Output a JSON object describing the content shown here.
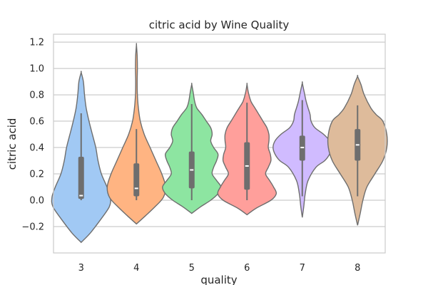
{
  "chart_data": {
    "type": "violin",
    "title": "citric acid by Wine Quality",
    "xlabel": "quality",
    "ylabel": "citric acid",
    "categories": [
      "3",
      "4",
      "5",
      "6",
      "7",
      "8"
    ],
    "ylim": [
      -0.4,
      1.26
    ],
    "yticks": [
      -0.2,
      0.0,
      0.2,
      0.4,
      0.6,
      0.8,
      1.0,
      1.2
    ],
    "ytick_labels": [
      "−0.2",
      "0.0",
      "0.2",
      "0.4",
      "0.6",
      "0.8",
      "1.0",
      "1.2"
    ],
    "grid": "horizontal",
    "colors": [
      "#a1c9f4",
      "#ffb482",
      "#8de5a1",
      "#ff9f9b",
      "#d0bbff",
      "#debb9b"
    ],
    "edge_color": "#6e6e6e",
    "series": [
      {
        "category": "3",
        "min": 0.0,
        "q1": 0.01,
        "median": 0.035,
        "q3": 0.33,
        "max": 0.66,
        "profile": [
          [
            -0.32,
            0.0
          ],
          [
            -0.25,
            0.16
          ],
          [
            -0.15,
            0.34
          ],
          [
            -0.05,
            0.5
          ],
          [
            0.02,
            0.52
          ],
          [
            0.1,
            0.46
          ],
          [
            0.2,
            0.36
          ],
          [
            0.3,
            0.3
          ],
          [
            0.4,
            0.26
          ],
          [
            0.5,
            0.2
          ],
          [
            0.6,
            0.14
          ],
          [
            0.7,
            0.09
          ],
          [
            0.8,
            0.06
          ],
          [
            0.9,
            0.04
          ],
          [
            0.97,
            0.0
          ]
        ]
      },
      {
        "category": "4",
        "min": 0.0,
        "q1": 0.03,
        "median": 0.09,
        "q3": 0.28,
        "max": 0.54,
        "profile": [
          [
            -0.18,
            0.0
          ],
          [
            -0.12,
            0.18
          ],
          [
            -0.05,
            0.38
          ],
          [
            0.02,
            0.55
          ],
          [
            0.1,
            0.6
          ],
          [
            0.2,
            0.52
          ],
          [
            0.3,
            0.4
          ],
          [
            0.4,
            0.28
          ],
          [
            0.5,
            0.16
          ],
          [
            0.6,
            0.08
          ],
          [
            0.7,
            0.04
          ],
          [
            0.8,
            0.02
          ],
          [
            0.9,
            0.015
          ],
          [
            1.0,
            0.02
          ],
          [
            1.1,
            0.015
          ],
          [
            1.18,
            0.0
          ]
        ]
      },
      {
        "category": "5",
        "min": 0.0,
        "q1": 0.09,
        "median": 0.23,
        "q3": 0.37,
        "max": 0.73,
        "profile": [
          [
            -0.1,
            0.0
          ],
          [
            -0.05,
            0.12
          ],
          [
            0.0,
            0.26
          ],
          [
            0.05,
            0.36
          ],
          [
            0.1,
            0.4
          ],
          [
            0.15,
            0.34
          ],
          [
            0.2,
            0.28
          ],
          [
            0.25,
            0.3
          ],
          [
            0.3,
            0.34
          ],
          [
            0.35,
            0.36
          ],
          [
            0.4,
            0.3
          ],
          [
            0.45,
            0.26
          ],
          [
            0.5,
            0.28
          ],
          [
            0.55,
            0.26
          ],
          [
            0.6,
            0.2
          ],
          [
            0.65,
            0.14
          ],
          [
            0.7,
            0.07
          ],
          [
            0.75,
            0.04
          ],
          [
            0.82,
            0.02
          ],
          [
            0.88,
            0.0
          ]
        ]
      },
      {
        "category": "6",
        "min": 0.0,
        "q1": 0.08,
        "median": 0.26,
        "q3": 0.44,
        "max": 0.74,
        "profile": [
          [
            -0.11,
            0.0
          ],
          [
            -0.06,
            0.14
          ],
          [
            0.0,
            0.36
          ],
          [
            0.05,
            0.44
          ],
          [
            0.1,
            0.4
          ],
          [
            0.15,
            0.34
          ],
          [
            0.2,
            0.28
          ],
          [
            0.25,
            0.32
          ],
          [
            0.3,
            0.36
          ],
          [
            0.35,
            0.35
          ],
          [
            0.4,
            0.32
          ],
          [
            0.45,
            0.33
          ],
          [
            0.5,
            0.33
          ],
          [
            0.55,
            0.3
          ],
          [
            0.6,
            0.24
          ],
          [
            0.65,
            0.18
          ],
          [
            0.7,
            0.12
          ],
          [
            0.75,
            0.06
          ],
          [
            0.82,
            0.02
          ],
          [
            0.88,
            0.0
          ]
        ]
      },
      {
        "category": "7",
        "min": 0.03,
        "q1": 0.3,
        "median": 0.4,
        "q3": 0.49,
        "max": 0.76,
        "profile": [
          [
            -0.13,
            0.0
          ],
          [
            -0.05,
            0.03
          ],
          [
            0.05,
            0.06
          ],
          [
            0.15,
            0.12
          ],
          [
            0.25,
            0.28
          ],
          [
            0.3,
            0.46
          ],
          [
            0.35,
            0.56
          ],
          [
            0.4,
            0.6
          ],
          [
            0.45,
            0.56
          ],
          [
            0.5,
            0.44
          ],
          [
            0.55,
            0.26
          ],
          [
            0.6,
            0.18
          ],
          [
            0.65,
            0.16
          ],
          [
            0.7,
            0.12
          ],
          [
            0.75,
            0.08
          ],
          [
            0.82,
            0.04
          ],
          [
            0.89,
            0.0
          ]
        ]
      },
      {
        "category": "8",
        "min": 0.03,
        "q1": 0.3,
        "median": 0.42,
        "q3": 0.54,
        "max": 0.72,
        "profile": [
          [
            -0.19,
            0.0
          ],
          [
            -0.1,
            0.04
          ],
          [
            0.0,
            0.08
          ],
          [
            0.1,
            0.14
          ],
          [
            0.2,
            0.26
          ],
          [
            0.3,
            0.38
          ],
          [
            0.4,
            0.44
          ],
          [
            0.5,
            0.44
          ],
          [
            0.6,
            0.38
          ],
          [
            0.65,
            0.28
          ],
          [
            0.7,
            0.2
          ],
          [
            0.8,
            0.1
          ],
          [
            0.88,
            0.05
          ],
          [
            0.94,
            0.0
          ]
        ]
      }
    ]
  }
}
